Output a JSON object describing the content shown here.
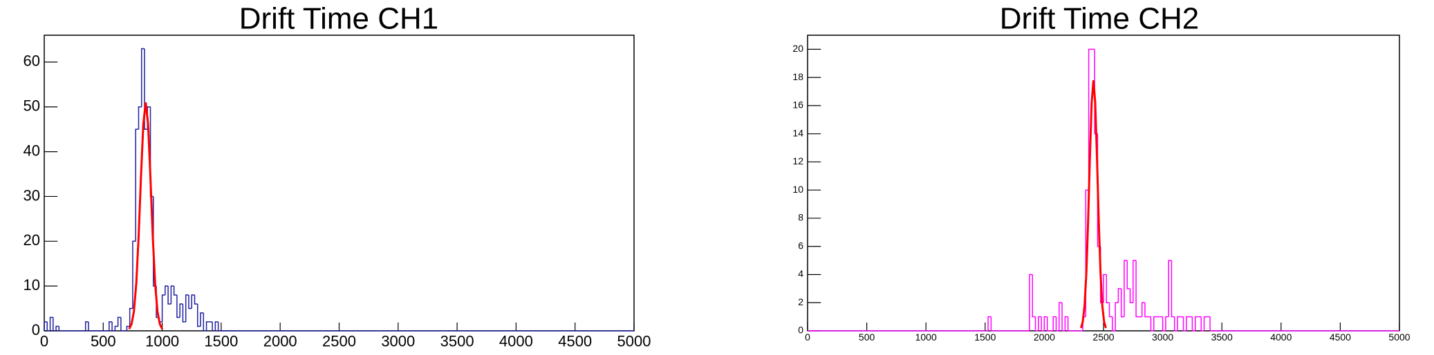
{
  "chart_data": [
    {
      "type": "histogram",
      "title": "Drift Time CH1",
      "color": "#1f1fa0",
      "bins": [
        0,
        25,
        50,
        75,
        100,
        125,
        150,
        175,
        200,
        225,
        250,
        275,
        300,
        325,
        350,
        375,
        400,
        425,
        450,
        475,
        500,
        525,
        550,
        575,
        600,
        625,
        650,
        675,
        700,
        725,
        750,
        775,
        800,
        825,
        850,
        875,
        900,
        925,
        950,
        975,
        1000,
        1025,
        1050,
        1075,
        1100,
        1125,
        1150,
        1175,
        1200,
        1225,
        1250,
        1275,
        1300,
        1325,
        1350,
        1375,
        1400,
        1425,
        1450,
        1475,
        1500
      ],
      "counts": [
        2,
        0,
        3,
        0,
        1,
        0,
        0,
        0,
        0,
        0,
        0,
        0,
        0,
        0,
        2,
        0,
        0,
        0,
        0,
        0,
        0,
        0,
        2,
        0,
        1,
        3,
        0,
        0,
        1,
        5,
        20,
        45,
        50,
        63,
        45,
        50,
        30,
        10,
        3,
        2,
        8,
        10,
        6,
        10,
        8,
        3,
        6,
        2,
        8,
        5,
        8,
        6,
        1,
        4,
        0,
        2,
        2,
        0,
        2,
        0
      ],
      "fit": {
        "color": "#ff0000",
        "x": [
          720,
          740,
          760,
          780,
          800,
          820,
          840,
          860,
          880,
          900,
          920,
          940,
          960,
          980,
          1000
        ],
        "values": [
          0.4,
          1.5,
          4.3,
          10.5,
          21.0,
          34.4,
          46.2,
          51,
          46.2,
          34.4,
          21.0,
          10.5,
          4.3,
          1.5,
          0.4
        ]
      },
      "xlim": [
        0,
        5000
      ],
      "xticks": [
        0,
        500,
        1000,
        1500,
        2000,
        2500,
        3000,
        3500,
        4000,
        4500,
        5000
      ],
      "ylim": [
        0,
        66
      ],
      "yticks": [
        0,
        10,
        20,
        30,
        40,
        50,
        60
      ]
    },
    {
      "type": "histogram",
      "title": "Drift Time CH2",
      "color": "#ff00ff",
      "bins": [
        1500,
        1525,
        1550,
        1575,
        1600,
        1625,
        1650,
        1675,
        1700,
        1725,
        1750,
        1775,
        1800,
        1825,
        1850,
        1875,
        1900,
        1925,
        1950,
        1975,
        2000,
        2025,
        2050,
        2075,
        2100,
        2125,
        2150,
        2175,
        2200,
        2225,
        2250,
        2275,
        2300,
        2325,
        2350,
        2375,
        2400,
        2425,
        2450,
        2475,
        2500,
        2525,
        2550,
        2575,
        2600,
        2625,
        2650,
        2675,
        2700,
        2725,
        2750,
        2775,
        2800,
        2825,
        2850,
        2875,
        2900,
        2925,
        2950,
        2975,
        3000,
        3025,
        3050,
        3075,
        3100,
        3125,
        3150,
        3175,
        3200,
        3225,
        3250,
        3275,
        3300,
        3325,
        3350,
        3375,
        3400,
        3425,
        3450,
        3475,
        3500
      ],
      "counts": [
        0,
        1,
        0,
        0,
        0,
        0,
        0,
        0,
        0,
        0,
        0,
        0,
        0,
        0,
        0,
        4,
        1,
        0,
        1,
        0,
        1,
        0,
        0,
        1,
        0,
        2,
        0,
        1,
        0,
        0,
        0,
        0,
        0,
        1,
        10,
        20,
        20,
        14,
        6,
        2,
        4,
        2,
        1,
        0,
        2,
        3,
        1,
        5,
        3,
        2,
        5,
        1,
        1,
        2,
        1,
        1,
        0,
        1,
        1,
        1,
        0,
        1,
        5,
        1,
        0,
        1,
        1,
        0,
        1,
        1,
        0,
        1,
        1,
        0,
        1,
        1,
        0,
        0,
        0,
        0
      ],
      "fit": {
        "color": "#ff0000",
        "x": [
          2310,
          2325,
          2340,
          2355,
          2370,
          2385,
          2400,
          2415,
          2430,
          2445,
          2460,
          2475,
          2490,
          2505,
          2520
        ],
        "values": [
          0.2,
          0.65,
          1.79,
          4.09,
          7.79,
          12.3,
          16.2,
          17.8,
          16.2,
          12.3,
          7.79,
          4.09,
          1.79,
          0.65,
          0.2
        ]
      },
      "xlim": [
        0,
        5000
      ],
      "xticks": [
        0,
        500,
        1000,
        1500,
        2000,
        2500,
        3000,
        3500,
        4000,
        4500,
        5000
      ],
      "ylim": [
        0,
        21
      ],
      "yticks": [
        0,
        2,
        4,
        6,
        8,
        10,
        12,
        14,
        16,
        18,
        20
      ]
    }
  ]
}
